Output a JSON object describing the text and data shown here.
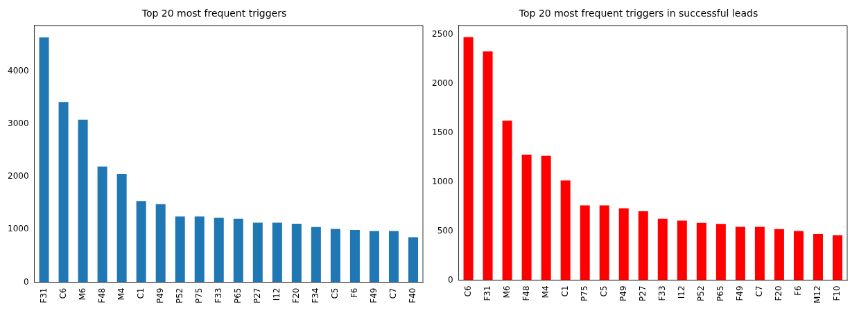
{
  "chart_data": [
    {
      "type": "bar",
      "title": "Top 20 most frequent triggers",
      "categories": [
        "F31",
        "C6",
        "M6",
        "F48",
        "M4",
        "C1",
        "P49",
        "P52",
        "P75",
        "F33",
        "P65",
        "P27",
        "I12",
        "F20",
        "F34",
        "C5",
        "F6",
        "F49",
        "C7",
        "F40"
      ],
      "values": [
        4635,
        3411,
        3076,
        2188,
        2051,
        1538,
        1477,
        1244,
        1244,
        1218,
        1203,
        1127,
        1127,
        1107,
        1046,
        1010,
        990,
        970,
        970,
        853
      ],
      "color": "#1f77b4",
      "ylim": [
        0,
        4860
      ],
      "yticks": [
        0,
        1000,
        2000,
        3000,
        4000
      ],
      "grid": false,
      "legend": false
    },
    {
      "type": "bar",
      "title": "Top 20 most frequent triggers in successful leads",
      "categories": [
        "C6",
        "F31",
        "M6",
        "F48",
        "M4",
        "C1",
        "P75",
        "C5",
        "P49",
        "P27",
        "F33",
        "I12",
        "P52",
        "P65",
        "F49",
        "C7",
        "F20",
        "F6",
        "M12",
        "F10"
      ],
      "values": [
        2472,
        2327,
        1622,
        1274,
        1265,
        1014,
        761,
        761,
        730,
        700,
        624,
        605,
        582,
        571,
        541,
        541,
        518,
        499,
        468,
        457
      ],
      "color": "#ff0000",
      "ylim": [
        0,
        2590
      ],
      "yticks": [
        0,
        500,
        1000,
        1500,
        2000,
        2500
      ],
      "grid": false,
      "legend": false
    }
  ]
}
